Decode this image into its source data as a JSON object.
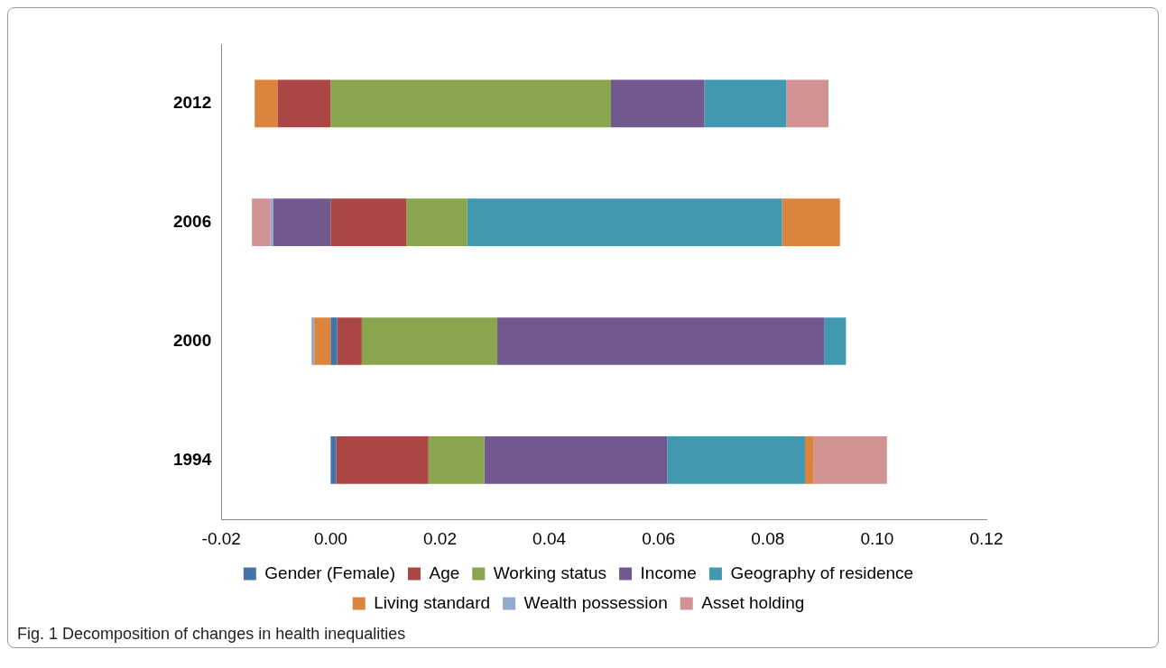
{
  "chart_data": {
    "type": "bar",
    "orientation": "horizontal",
    "stacked": true,
    "categories": [
      "2012",
      "2006",
      "2000",
      "1994"
    ],
    "series": [
      {
        "name": "Gender (Female)",
        "color": "#4572a7",
        "values": [
          0,
          0,
          0.0012,
          0.001
        ]
      },
      {
        "name": "Age",
        "color": "#aa4643",
        "values": [
          -0.0097,
          0.0139,
          0.0045,
          0.0169
        ]
      },
      {
        "name": "Working status",
        "color": "#89a54e",
        "values": [
          0.0513,
          0.0111,
          0.0248,
          0.0102
        ]
      },
      {
        "name": "Income",
        "color": "#71588f",
        "values": [
          0.0171,
          -0.0105,
          0.0598,
          0.0335
        ]
      },
      {
        "name": "Geography of residence",
        "color": "#4198af",
        "values": [
          0.015,
          0.0576,
          0.004,
          0.0252
        ]
      },
      {
        "name": "Living standard",
        "color": "#db843d",
        "values": [
          -0.0042,
          0.0106,
          -0.003,
          0.0016
        ]
      },
      {
        "name": "Wealth possession",
        "color": "#93a9cf",
        "values": [
          0,
          -0.0005,
          -0.0005,
          0
        ]
      },
      {
        "name": "Asset holding",
        "color": "#d19392",
        "values": [
          0.0077,
          -0.0034,
          0,
          0.0134
        ]
      }
    ],
    "xlim": [
      -0.02,
      0.12
    ],
    "xticks": [
      {
        "value": -0.02,
        "label": "-0.02"
      },
      {
        "value": 0,
        "label": "0.00"
      },
      {
        "value": 0.02,
        "label": "0.02"
      },
      {
        "value": 0.04,
        "label": "0.04"
      },
      {
        "value": 0.06,
        "label": "0.06"
      },
      {
        "value": 0.08,
        "label": "0.08"
      },
      {
        "value": 0.1,
        "label": "0.10"
      },
      {
        "value": 0.12,
        "label": "0.12"
      }
    ],
    "grid": false,
    "legend": "bottom",
    "annotations": [
      "Fig. 1 Decomposition of changes in health inequalities"
    ]
  }
}
